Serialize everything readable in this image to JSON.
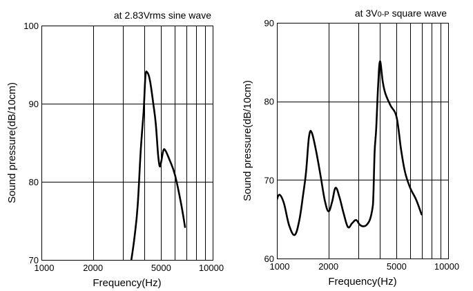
{
  "chart_data": [
    {
      "type": "line",
      "annotation": "at 2.83Vrms sine wave",
      "xlabel": "Frequency(Hz)",
      "ylabel": "Sound pressure(dB/10cm)",
      "x_scale": "log",
      "xlim": [
        1000,
        10000
      ],
      "ylim": [
        70,
        100
      ],
      "x_ticks": [
        1000,
        2000,
        3000,
        4000,
        5000,
        6000,
        7000,
        8000,
        9000,
        10000
      ],
      "x_tick_labels": [
        "1000",
        "2000",
        "",
        "",
        "5000",
        "",
        "",
        "",
        "",
        "10000"
      ],
      "y_ticks": [
        70,
        80,
        90,
        100
      ],
      "y_tick_labels": [
        "70",
        "80",
        "90",
        "100"
      ],
      "grid": true,
      "series": [
        {
          "x": [
            3350,
            3500,
            3650,
            3800,
            3950,
            4050,
            4150,
            4300,
            4500,
            4650,
            4800,
            4900,
            5000,
            5150,
            5300,
            5600,
            6000,
            6500,
            6900
          ],
          "y": [
            70,
            73,
            77,
            84,
            89,
            93.5,
            94,
            93,
            90,
            87.5,
            83.5,
            82,
            82.5,
            84,
            84,
            82.8,
            81,
            77.5,
            74.2
          ]
        }
      ]
    },
    {
      "type": "line",
      "annotation": "at 3V0-P square wave",
      "xlabel": "Frequency(Hz)",
      "ylabel": "Sound pressure(dB/10cm)",
      "x_scale": "log",
      "xlim": [
        1000,
        10000
      ],
      "ylim": [
        60,
        90
      ],
      "x_ticks": [
        1000,
        2000,
        3000,
        4000,
        5000,
        6000,
        7000,
        8000,
        9000,
        10000
      ],
      "x_tick_labels": [
        "1000",
        "2000",
        "",
        "",
        "5000",
        "",
        "",
        "",
        "",
        "10000"
      ],
      "y_ticks": [
        60,
        70,
        80,
        90
      ],
      "y_tick_labels": [
        "60",
        "70",
        "80",
        "90"
      ],
      "grid": true,
      "series": [
        {
          "x": [
            970,
            1000,
            1040,
            1100,
            1180,
            1270,
            1350,
            1420,
            1480,
            1540,
            1600,
            1700,
            1800,
            1900,
            2000,
            2100,
            2200,
            2320,
            2450,
            2600,
            2750,
            2900,
            3050,
            3200,
            3350,
            3500,
            3620,
            3660,
            3720,
            3800,
            3900,
            4000,
            4150,
            4300,
            4600,
            5000,
            5300,
            5600,
            6000,
            6500,
            7000
          ],
          "y": [
            65.8,
            67.5,
            68.1,
            67,
            64.2,
            63,
            64.8,
            68,
            71,
            75.5,
            76,
            73.5,
            70.5,
            67.5,
            66,
            67.2,
            69,
            67.8,
            65.8,
            64,
            64.5,
            64.9,
            64.3,
            64.1,
            64.3,
            65,
            66.5,
            68,
            73.5,
            76.5,
            82,
            85.1,
            82.5,
            81,
            79.5,
            78,
            74,
            71,
            69,
            67.5,
            65.6
          ]
        }
      ]
    }
  ]
}
